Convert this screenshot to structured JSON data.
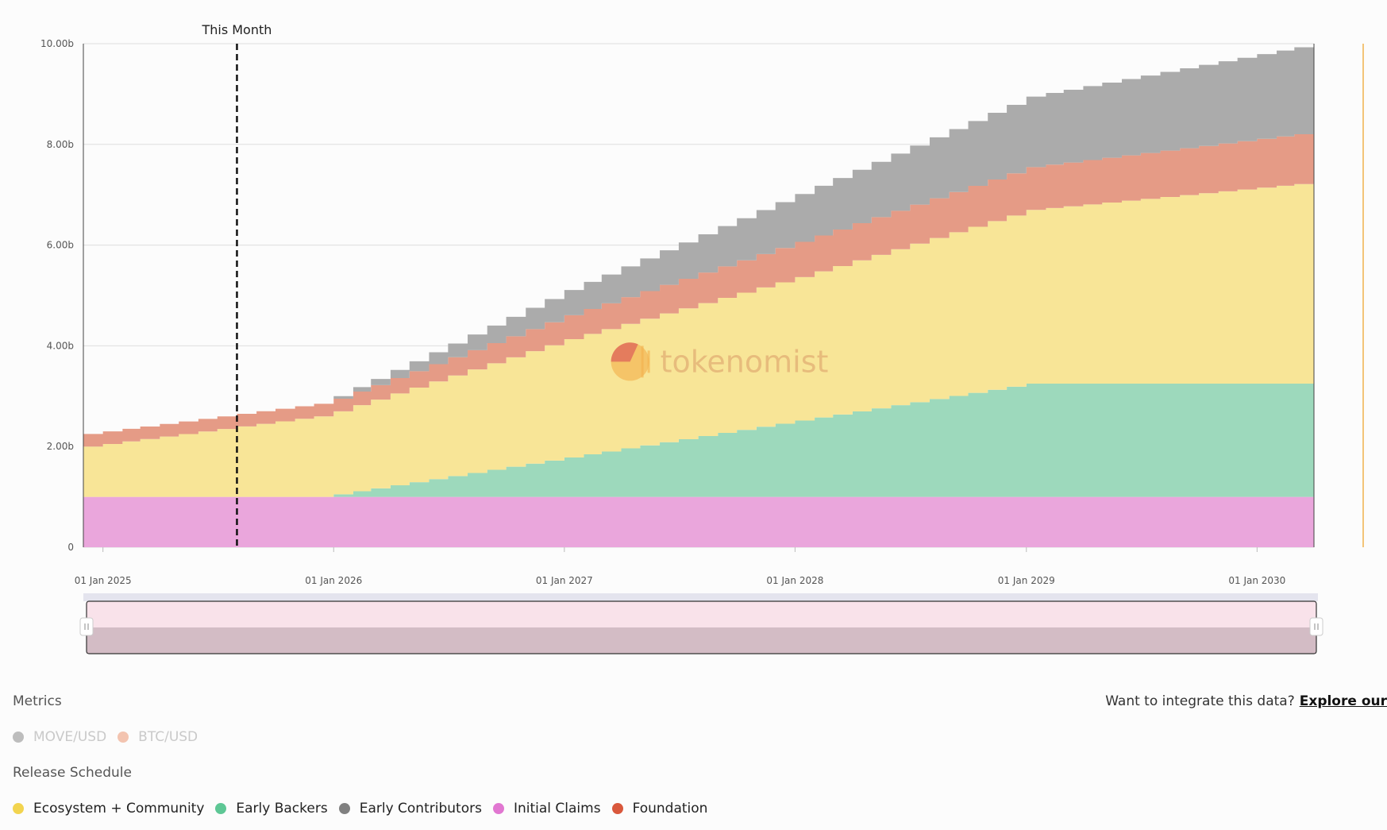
{
  "chart_data": {
    "type": "area",
    "stacked": true,
    "step": true,
    "annotation": "This Month",
    "annotation_date": "2025-08-01",
    "watermark": "tokenomist",
    "y_ticks": [
      "0",
      "2.00b",
      "4.00b",
      "6.00b",
      "8.00b",
      "10.00b"
    ],
    "ylim": [
      0,
      10000000000
    ],
    "x_ticks": [
      {
        "date": "2025-01-01",
        "label": "01 Jan 2025"
      },
      {
        "date": "2026-01-01",
        "label": "01 Jan 2026"
      },
      {
        "date": "2027-01-01",
        "label": "01 Jan 2027"
      },
      {
        "date": "2028-01-01",
        "label": "01 Jan 2028"
      },
      {
        "date": "2029-01-01",
        "label": "01 Jan 2029"
      },
      {
        "date": "2030-01-01",
        "label": "01 Jan 2030"
      }
    ],
    "x_range": [
      "2024-12-01",
      "2030-04-01"
    ],
    "series": [
      {
        "name": "Initial Claims",
        "color": "#eaa6dc",
        "points": [
          [
            "2024-12-01",
            1000000000
          ],
          [
            "2030-04-01",
            1000000000
          ]
        ]
      },
      {
        "name": "Early Backers",
        "color": "#9dd9bc",
        "points": [
          [
            "2024-12-01",
            0
          ],
          [
            "2025-12-01",
            0
          ],
          [
            "2026-01-01",
            50000000
          ],
          [
            "2029-01-01",
            2250000000
          ],
          [
            "2030-04-01",
            2250000000
          ]
        ]
      },
      {
        "name": "Ecosystem + Community",
        "color": "#f8e597",
        "points": [
          [
            "2024-12-01",
            1000000000
          ],
          [
            "2025-08-01",
            1400000000
          ],
          [
            "2026-01-01",
            1650000000
          ],
          [
            "2027-01-01",
            2350000000
          ],
          [
            "2028-01-01",
            2850000000
          ],
          [
            "2029-01-01",
            3450000000
          ],
          [
            "2030-04-01",
            4000000000
          ]
        ]
      },
      {
        "name": "Foundation",
        "color": "#e59b86",
        "points": [
          [
            "2024-12-01",
            250000000
          ],
          [
            "2026-01-01",
            250000000
          ],
          [
            "2026-02-01",
            270000000
          ],
          [
            "2028-01-01",
            700000000
          ],
          [
            "2029-01-01",
            850000000
          ],
          [
            "2030-04-01",
            1000000000
          ]
        ]
      },
      {
        "name": "Early Contributors",
        "color": "#ababab",
        "points": [
          [
            "2024-12-01",
            0
          ],
          [
            "2025-12-01",
            0
          ],
          [
            "2026-01-01",
            50000000
          ],
          [
            "2029-01-01",
            1400000000
          ],
          [
            "2030-04-01",
            1750000000
          ]
        ]
      }
    ]
  },
  "legend": {
    "metrics_title": "Metrics",
    "metrics": [
      {
        "label": "MOVE/USD",
        "color": "#bdbdbd"
      },
      {
        "label": "BTC/USD",
        "color": "#f3c4b0"
      }
    ],
    "release_title": "Release Schedule",
    "release": [
      {
        "label": "Ecosystem + Community",
        "color": "#f2d44f"
      },
      {
        "label": "Early Backers",
        "color": "#5ec795"
      },
      {
        "label": "Early Contributors",
        "color": "#808080"
      },
      {
        "label": "Initial Claims",
        "color": "#e177d1"
      },
      {
        "label": "Foundation",
        "color": "#d9583c"
      }
    ]
  },
  "integrate": {
    "text": "Want to integrate this data?",
    "link": "Explore our"
  }
}
